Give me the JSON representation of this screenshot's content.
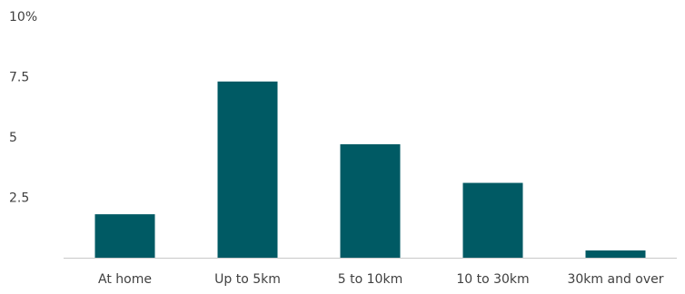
{
  "chart_data": {
    "type": "bar",
    "title": "",
    "xlabel": "",
    "ylabel": "",
    "categories": [
      "At home",
      "Up to 5km",
      "5 to 10km",
      "10 to 30km",
      "30km and over"
    ],
    "values": [
      1.8,
      7.3,
      4.7,
      3.1,
      0.3
    ],
    "ylim": [
      0,
      10
    ],
    "yticks": [
      2.5,
      5,
      7.5,
      10
    ],
    "ytick_labels": [
      "2.5",
      "5",
      "7.5",
      "10%"
    ],
    "bar_color": "#005a64",
    "axis_color": "#c8c8c8",
    "grid": false,
    "legend": "none"
  }
}
